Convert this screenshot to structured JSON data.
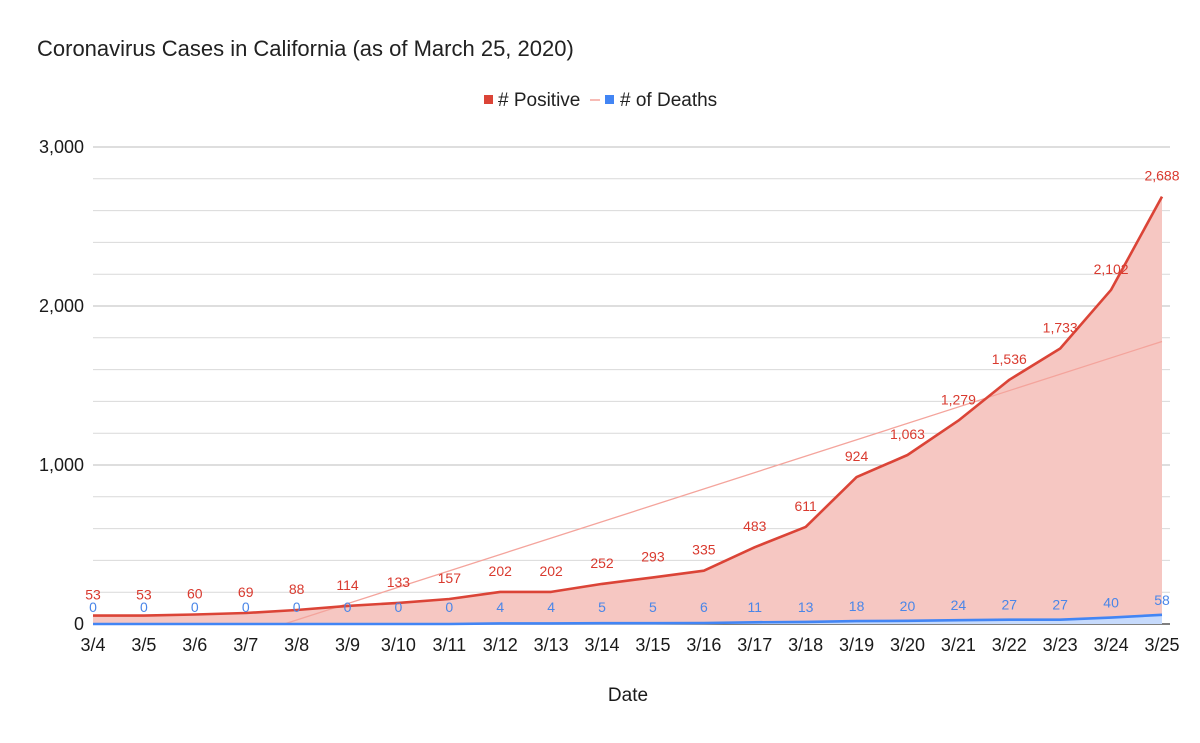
{
  "chart_data": {
    "type": "area",
    "title": "Coronavirus Cases in California (as of March 25, 2020)",
    "xlabel": "Date",
    "ylabel": "",
    "ylim": [
      0,
      3000
    ],
    "y_ticks": [
      "0",
      "1,000",
      "2,000",
      "3,000"
    ],
    "grid": true,
    "legend_position": "top",
    "categories": [
      "3/4",
      "3/5",
      "3/6",
      "3/7",
      "3/8",
      "3/9",
      "3/10",
      "3/11",
      "3/12",
      "3/13",
      "3/14",
      "3/15",
      "3/16",
      "3/17",
      "3/18",
      "3/19",
      "3/20",
      "3/21",
      "3/22",
      "3/23",
      "3/24",
      "3/25"
    ],
    "series": [
      {
        "name": "# Positive",
        "color": "#db4437",
        "fill": "#f6c7c2",
        "values": [
          53,
          53,
          60,
          69,
          88,
          114,
          133,
          157,
          202,
          202,
          252,
          293,
          335,
          483,
          611,
          924,
          1063,
          1279,
          1536,
          1733,
          2102,
          2688
        ],
        "labels": [
          "53",
          "53",
          "60",
          "69",
          "88",
          "114",
          "133",
          "157",
          "202",
          "202",
          "252",
          "293",
          "335",
          "483",
          "611",
          "924",
          "1,063",
          "1,279",
          "1,536",
          "1,733",
          "2,102",
          "2,688"
        ]
      },
      {
        "name": "# of Deaths",
        "color": "#4285f4",
        "fill": "#c6dafc",
        "values": [
          0,
          0,
          0,
          0,
          0,
          0,
          0,
          0,
          4,
          4,
          5,
          5,
          6,
          11,
          13,
          18,
          20,
          24,
          27,
          27,
          40,
          58
        ],
        "labels": [
          "0",
          "0",
          "0",
          "0",
          "0",
          "0",
          "0",
          "0",
          "4",
          "4",
          "5",
          "5",
          "6",
          "11",
          "13",
          "18",
          "20",
          "24",
          "27",
          "27",
          "40",
          "58"
        ]
      }
    ],
    "trendline": {
      "series": "# Positive",
      "type": "linear",
      "color": "#f4a49c",
      "start": {
        "x": "3/4",
        "y": -387
      },
      "end": {
        "x": "3/25",
        "y": 1777
      }
    }
  }
}
